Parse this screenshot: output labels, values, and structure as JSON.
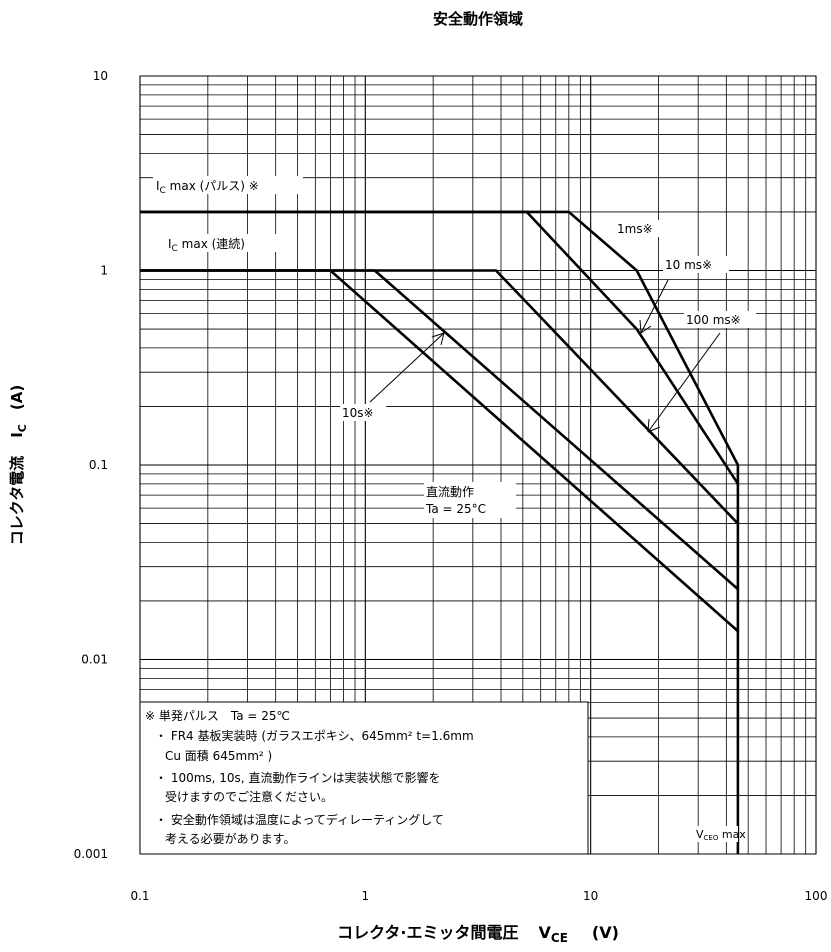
{
  "chart_data": {
    "type": "line",
    "title": "安全動作領域",
    "ylabel": "コレクタ電流　IC　(A)",
    "ylabel_parts": {
      "pre": "コレクタ電流",
      "symbol": "I",
      "sub": "C",
      "unit": "(A)"
    },
    "xlabel_parts": {
      "pre": "コレクタ·エミッタ間電圧",
      "symbol": "V",
      "sub": "CE",
      "unit": "(V)"
    },
    "xscale": "log",
    "yscale": "log",
    "xlim": [
      0.1,
      100
    ],
    "ylim": [
      0.001,
      10
    ],
    "grid": true,
    "x_tick_labels": [
      "0.1",
      "1",
      "10",
      "100"
    ],
    "x_tick_values": [
      0.1,
      1,
      10,
      100
    ],
    "y_tick_labels": [
      "10",
      "1",
      "0.1",
      "0.01",
      "0.001"
    ],
    "y_tick_values": [
      10,
      1,
      0.1,
      0.01,
      0.001
    ],
    "series": [
      {
        "points": [
          [
            0.1,
            2
          ],
          [
            8,
            2
          ],
          [
            16,
            1
          ],
          [
            45,
            0.1
          ]
        ]
      },
      {
        "points": [
          [
            0.1,
            2
          ],
          [
            5.2,
            2
          ],
          [
            16,
            0.5
          ],
          [
            45,
            0.08
          ]
        ]
      },
      {
        "points": [
          [
            0.1,
            1
          ],
          [
            3.8,
            1
          ],
          [
            45,
            0.05
          ]
        ]
      },
      {
        "points": [
          [
            0.1,
            1
          ],
          [
            1.1,
            1
          ],
          [
            45,
            0.023
          ]
        ]
      },
      {
        "points": [
          [
            0.1,
            1
          ],
          [
            0.7,
            1
          ],
          [
            45,
            0.014
          ]
        ]
      },
      {
        "points": [
          [
            45,
            0.1
          ],
          [
            45,
            0.001
          ]
        ]
      }
    ],
    "annotations": {
      "ic_pulse": {
        "pre": "I",
        "sub": "C",
        "post": " max (パルス) ※"
      },
      "ic_dc": {
        "pre": "I",
        "sub": "C",
        "post": " max (連続)"
      },
      "ms1": "1ms※",
      "ms10": "10 ms※",
      "ms100": "100 ms※",
      "s10": "10s※",
      "dc1": "直流動作",
      "dc2": "Ta = 25°C",
      "vceo": {
        "pre": "V",
        "sub": "CEO",
        "post": " max"
      }
    },
    "notes": [
      "※ 単発パルス　Ta = 25℃",
      "・ FR4 基板実装時 (ガラスエポキシ、645mm² t=1.6mm",
      "Cu 面積 645mm² )",
      "・ 100ms, 10s, 直流動作ラインは実装状態で影響を",
      "受けますのでご注意ください。",
      "・ 安全動作領域は温度によってディレーティングして",
      "考える必要があります。"
    ]
  }
}
